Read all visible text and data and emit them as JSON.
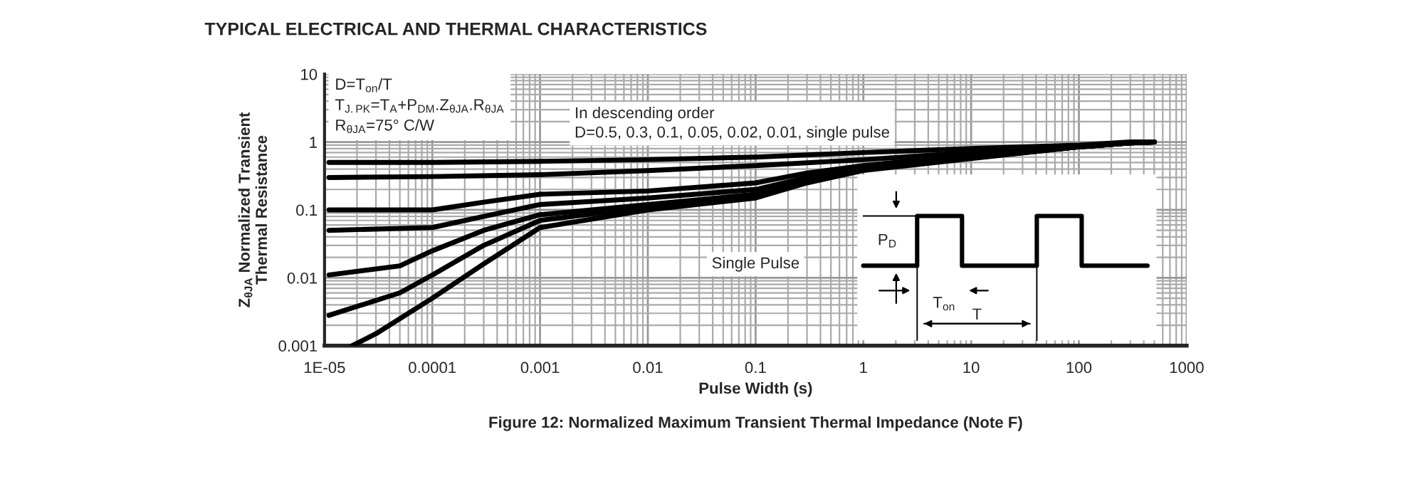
{
  "chart_data": {
    "type": "line",
    "title": "TYPICAL ELECTRICAL AND THERMAL CHARACTERISTICS",
    "xlabel": "Pulse Width (s)",
    "ylabel": "Z$_{θJA}$ Normalized Transient\nThermal Resistance",
    "log": "xy",
    "grid": true,
    "marker": "none",
    "line_style": "solid",
    "xlim": [
      1e-05,
      1000
    ],
    "ylim": [
      0.001,
      10
    ],
    "xticks": [
      {
        "value": 1e-05,
        "label": "1E-05"
      },
      {
        "value": 0.0001,
        "label": "0.0001"
      },
      {
        "value": 0.001,
        "label": "0.001"
      },
      {
        "value": 0.01,
        "label": "0.01"
      },
      {
        "value": 0.1,
        "label": "0.1"
      },
      {
        "value": 1,
        "label": "1"
      },
      {
        "value": 10,
        "label": "10"
      },
      {
        "value": 100,
        "label": "100"
      },
      {
        "value": 1000,
        "label": "1000"
      }
    ],
    "yticks": [
      {
        "value": 0.001,
        "label": "0.001"
      },
      {
        "value": 0.01,
        "label": "0.01"
      },
      {
        "value": 0.1,
        "label": "0.1"
      },
      {
        "value": 1,
        "label": "1"
      },
      {
        "value": 10,
        "label": "10"
      }
    ],
    "series": [
      {
        "color": "#000000",
        "x": [
          1.1e-05,
          0.0001,
          0.001,
          0.01,
          0.1,
          1,
          10,
          100,
          300,
          500
        ],
        "values": [
          0.5,
          0.5,
          0.52,
          0.55,
          0.6,
          0.7,
          0.8,
          0.9,
          1.0,
          1.0
        ]
      },
      {
        "color": "#000000",
        "x": [
          1.1e-05,
          0.0001,
          0.001,
          0.01,
          0.1,
          1,
          10,
          100,
          300,
          500
        ],
        "values": [
          0.3,
          0.31,
          0.33,
          0.38,
          0.45,
          0.55,
          0.7,
          0.85,
          0.97,
          1.0
        ]
      },
      {
        "color": "#000000",
        "x": [
          1.1e-05,
          0.0001,
          0.0003,
          0.001,
          0.01,
          0.1,
          0.3,
          1,
          10,
          100,
          300,
          500
        ],
        "values": [
          0.1,
          0.1,
          0.13,
          0.17,
          0.19,
          0.25,
          0.35,
          0.45,
          0.65,
          0.85,
          0.97,
          1.0
        ]
      },
      {
        "color": "#000000",
        "x": [
          1.1e-05,
          0.0001,
          0.0003,
          0.001,
          0.01,
          0.1,
          0.3,
          1,
          10,
          100,
          300,
          500
        ],
        "values": [
          0.05,
          0.055,
          0.08,
          0.12,
          0.15,
          0.2,
          0.3,
          0.42,
          0.6,
          0.85,
          0.97,
          1.0
        ]
      },
      {
        "color": "#000000",
        "x": [
          1.1e-05,
          5e-05,
          0.0001,
          0.0003,
          0.001,
          0.01,
          0.1,
          0.3,
          1,
          10,
          100,
          300,
          500
        ],
        "values": [
          0.011,
          0.015,
          0.025,
          0.05,
          0.085,
          0.12,
          0.17,
          0.28,
          0.4,
          0.58,
          0.85,
          0.97,
          1.0
        ]
      },
      {
        "color": "#000000",
        "x": [
          1.1e-05,
          5e-05,
          0.0001,
          0.0003,
          0.001,
          0.01,
          0.1,
          0.3,
          1,
          10,
          100,
          300,
          500
        ],
        "values": [
          0.0028,
          0.006,
          0.011,
          0.03,
          0.07,
          0.11,
          0.16,
          0.27,
          0.4,
          0.58,
          0.85,
          0.97,
          1.0
        ]
      },
      {
        "color": "#000000",
        "x": [
          1.8e-05,
          3e-05,
          0.0001,
          0.0003,
          0.001,
          0.01,
          0.1,
          0.3,
          1,
          10,
          100,
          300,
          500
        ],
        "values": [
          0.001,
          0.0015,
          0.005,
          0.016,
          0.055,
          0.1,
          0.15,
          0.25,
          0.38,
          0.57,
          0.85,
          0.97,
          1.0
        ]
      }
    ],
    "annotations": [
      "D=T$_{on}$/T\nT$_{J.PK}$=T$_{A}$+P$_{DM}$.Z$_{θJA}$.R$_{θJA}$\nR$_{θJA}$=75° C/W",
      "In descending order\nD=0.5, 0.3, 0.1, 0.05, 0.02, 0.01, single pulse",
      "Single Pulse",
      "P$_{D}$",
      "T$_{on}$",
      "T",
      "Figure 12: Normalized Maximum Transient Thermal Impedance (Note F)"
    ]
  }
}
